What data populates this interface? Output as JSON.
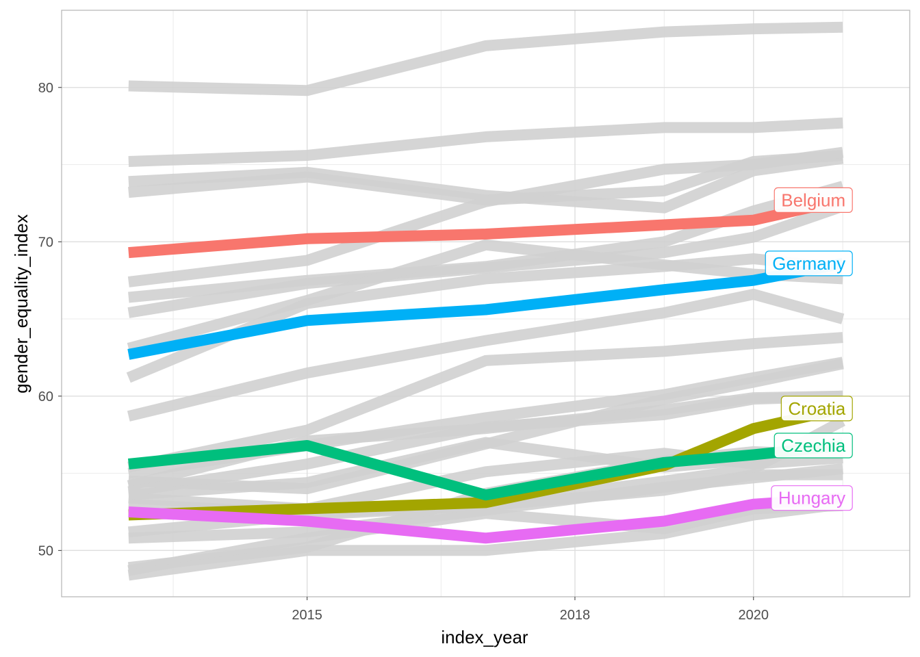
{
  "chart_data": {
    "type": "line",
    "title": "",
    "xlabel": "index_year",
    "ylabel": "gender_equality_index",
    "x": [
      2013,
      2015,
      2017,
      2019,
      2020,
      2021
    ],
    "xlim": [
      2012.25,
      2021.75
    ],
    "ylim": [
      47.0,
      85.0
    ],
    "xticks": [
      2015,
      2018,
      2020
    ],
    "xtick_labels": [
      "2015",
      "2018",
      "2020"
    ],
    "yticks": [
      50,
      60,
      70,
      80
    ],
    "ytick_labels": [
      "50",
      "60",
      "70",
      "80"
    ],
    "grid": true,
    "legend": "none (series labelled at line ends)",
    "background_color": "#d0d0d0",
    "background_series": [
      {
        "values": [
          80.1,
          79.8,
          82.7,
          83.6,
          83.8,
          83.9
        ]
      },
      {
        "values": [
          75.2,
          75.6,
          76.8,
          77.4,
          77.4,
          77.7
        ]
      },
      {
        "values": [
          73.9,
          74.5,
          73.0,
          72.2,
          74.6,
          75.4
        ]
      },
      {
        "values": [
          73.2,
          74.2,
          72.7,
          73.3,
          75.2,
          75.6
        ]
      },
      {
        "values": [
          67.4,
          68.8,
          72.6,
          74.7,
          75.0,
          75.8
        ]
      },
      {
        "values": [
          66.4,
          67.5,
          68.4,
          70.0,
          72.0,
          73.6
        ]
      },
      {
        "values": [
          65.4,
          67.3,
          68.3,
          69.3,
          70.3,
          72.3
        ]
      },
      {
        "values": [
          63.1,
          66.2,
          69.8,
          68.5,
          67.9,
          67.6
        ]
      },
      {
        "values": [
          61.2,
          66.0,
          67.6,
          68.4,
          68.9,
          68.3
        ]
      },
      {
        "values": [
          58.7,
          61.5,
          63.6,
          65.4,
          66.6,
          65.0
        ]
      },
      {
        "values": [
          55.4,
          57.8,
          62.3,
          62.9,
          63.4,
          63.8
        ]
      },
      {
        "values": [
          55.0,
          56.8,
          58.6,
          60.1,
          61.2,
          62.2
        ]
      },
      {
        "values": [
          54.5,
          54.0,
          56.9,
          59.8,
          60.9,
          62.1
        ]
      },
      {
        "values": [
          54.2,
          57.1,
          57.9,
          59.1,
          59.9,
          60.0
        ]
      },
      {
        "values": [
          53.8,
          55.6,
          58.0,
          58.8,
          59.8,
          60.0
        ]
      },
      {
        "values": [
          53.6,
          54.4,
          57.0,
          55.4,
          55.9,
          57.0
        ]
      },
      {
        "values": [
          53.4,
          52.7,
          55.1,
          56.3,
          55.6,
          56.0
        ]
      },
      {
        "values": [
          53.0,
          52.4,
          53.0,
          54.5,
          55.3,
          58.4
        ]
      },
      {
        "values": [
          51.2,
          52.3,
          52.9,
          53.9,
          54.9,
          54.9
        ]
      },
      {
        "values": [
          50.8,
          51.2,
          52.6,
          54.1,
          54.7,
          55.3
        ]
      },
      {
        "values": [
          48.9,
          50.2,
          53.7,
          55.8,
          56.4,
          56.2
        ]
      },
      {
        "values": [
          48.7,
          50.8,
          52.4,
          51.4,
          52.7,
          52.9
        ]
      },
      {
        "values": [
          48.4,
          50.0,
          50.0,
          51.1,
          52.3,
          53.0
        ]
      }
    ],
    "series": [
      {
        "name": "Belgium",
        "color": "#F8766D",
        "values": [
          69.3,
          70.2,
          70.5,
          71.1,
          71.4,
          72.7
        ]
      },
      {
        "name": "Germany",
        "color": "#00B0F6",
        "values": [
          62.7,
          64.9,
          65.6,
          66.9,
          67.5,
          68.6
        ]
      },
      {
        "name": "Croatia",
        "color": "#A3A500",
        "values": [
          52.3,
          52.7,
          53.1,
          55.5,
          57.9,
          59.2
        ]
      },
      {
        "name": "Czechia",
        "color": "#00BF7D",
        "values": [
          55.6,
          56.8,
          53.6,
          55.7,
          56.2,
          56.8
        ]
      },
      {
        "name": "Hungary",
        "color": "#E76BF3",
        "values": [
          52.5,
          51.9,
          50.8,
          51.9,
          53.0,
          53.4
        ]
      }
    ]
  }
}
